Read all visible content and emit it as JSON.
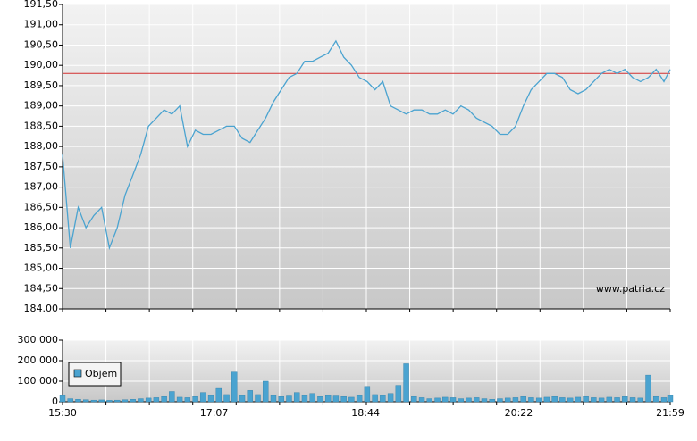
{
  "chart_data": [
    {
      "type": "line",
      "annotation": "www.patria.cz",
      "x": [
        "15:30",
        "15:35",
        "15:40",
        "15:45",
        "15:50",
        "15:55",
        "16:00",
        "16:05",
        "16:10",
        "16:15",
        "16:20",
        "16:25",
        "16:30",
        "16:35",
        "16:40",
        "16:45",
        "16:50",
        "16:55",
        "17:00",
        "17:05",
        "17:10",
        "17:15",
        "17:20",
        "17:25",
        "17:30",
        "17:35",
        "17:40",
        "17:45",
        "17:50",
        "17:55",
        "18:00",
        "18:05",
        "18:10",
        "18:15",
        "18:20",
        "18:25",
        "18:30",
        "18:35",
        "18:40",
        "18:45",
        "18:50",
        "18:55",
        "19:00",
        "19:05",
        "19:10",
        "19:15",
        "19:20",
        "19:25",
        "19:30",
        "19:35",
        "19:40",
        "19:45",
        "19:50",
        "19:55",
        "20:00",
        "20:05",
        "20:10",
        "20:15",
        "20:20",
        "20:25",
        "20:30",
        "20:35",
        "20:40",
        "20:45",
        "20:50",
        "20:55",
        "21:00",
        "21:05",
        "21:10",
        "21:15",
        "21:20",
        "21:25",
        "21:30",
        "21:35",
        "21:40",
        "21:45",
        "21:50",
        "21:55",
        "21:59"
      ],
      "xlim": [
        "15:30",
        "21:59"
      ],
      "series": [
        {
          "color": "#4aa3d0",
          "values": [
            187.8,
            185.5,
            186.5,
            186.0,
            186.3,
            186.5,
            185.5,
            186.0,
            186.8,
            187.3,
            187.8,
            188.5,
            188.7,
            188.9,
            188.8,
            189.0,
            188.0,
            188.4,
            188.3,
            188.3,
            188.4,
            188.5,
            188.5,
            188.2,
            188.1,
            188.4,
            188.7,
            189.1,
            189.4,
            189.7,
            189.8,
            190.1,
            190.1,
            190.2,
            190.3,
            190.6,
            190.2,
            190.0,
            189.7,
            189.6,
            189.4,
            189.6,
            189.0,
            188.9,
            188.8,
            188.9,
            188.9,
            188.8,
            188.8,
            188.9,
            188.8,
            189.0,
            188.9,
            188.7,
            188.6,
            188.5,
            188.3,
            188.3,
            188.5,
            189.0,
            189.4,
            189.6,
            189.8,
            189.8,
            189.7,
            189.4,
            189.3,
            189.4,
            189.6,
            189.8,
            189.9,
            189.8,
            189.9,
            189.7,
            189.6,
            189.7,
            189.9,
            189.6,
            189.9
          ]
        }
      ],
      "reference_line": 189.8,
      "reference_color": "#d23030",
      "ylim": [
        184,
        191.5
      ],
      "yticks": [
        {
          "value": 184,
          "label": "184.00"
        },
        {
          "value": 184.5,
          "label": "184,50"
        },
        {
          "value": 185,
          "label": "185,00"
        },
        {
          "value": 185.5,
          "label": "185,50"
        },
        {
          "value": 186,
          "label": "186,00"
        },
        {
          "value": 186.5,
          "label": "186,50"
        },
        {
          "value": 187,
          "label": "187,00"
        },
        {
          "value": 187.5,
          "label": "187,50"
        },
        {
          "value": 188,
          "label": "188,00"
        },
        {
          "value": 188.5,
          "label": "188,50"
        },
        {
          "value": 189,
          "label": "189,00"
        },
        {
          "value": 189.5,
          "label": "189,50"
        },
        {
          "value": 190,
          "label": "190,00"
        },
        {
          "value": 190.5,
          "label": "190,50"
        },
        {
          "value": 191,
          "label": "191,00"
        },
        {
          "value": 191.5,
          "label": "191,50"
        }
      ],
      "grid": true
    },
    {
      "type": "bar",
      "series": [
        {
          "name": "Objem",
          "color": "#4aa3d0",
          "values": [
            30000,
            15000,
            12000,
            10000,
            8000,
            9000,
            7000,
            8000,
            10000,
            12000,
            15000,
            18000,
            20000,
            25000,
            50000,
            22000,
            20000,
            25000,
            45000,
            30000,
            65000,
            35000,
            145000,
            30000,
            55000,
            35000,
            100000,
            30000,
            25000,
            28000,
            45000,
            30000,
            40000,
            25000,
            30000,
            28000,
            25000,
            22000,
            30000,
            75000,
            35000,
            30000,
            40000,
            80000,
            185000,
            25000,
            20000,
            15000,
            18000,
            22000,
            20000,
            15000,
            18000,
            20000,
            15000,
            12000,
            15000,
            18000,
            20000,
            25000,
            20000,
            18000,
            22000,
            25000,
            20000,
            18000,
            22000,
            25000,
            20000,
            18000,
            22000,
            20000,
            25000,
            20000,
            18000,
            130000,
            25000,
            20000,
            30000
          ]
        }
      ],
      "xticks": [
        "15:30",
        "17:07",
        "18:44",
        "20:22",
        "21:59"
      ],
      "ylim": [
        0,
        300000
      ],
      "yticks": [
        0,
        {
          "value": 100000,
          "label": "100 000"
        },
        {
          "value": 200000,
          "label": "200 000"
        },
        {
          "value": 300000,
          "label": "300 000"
        }
      ],
      "grid": true
    }
  ]
}
